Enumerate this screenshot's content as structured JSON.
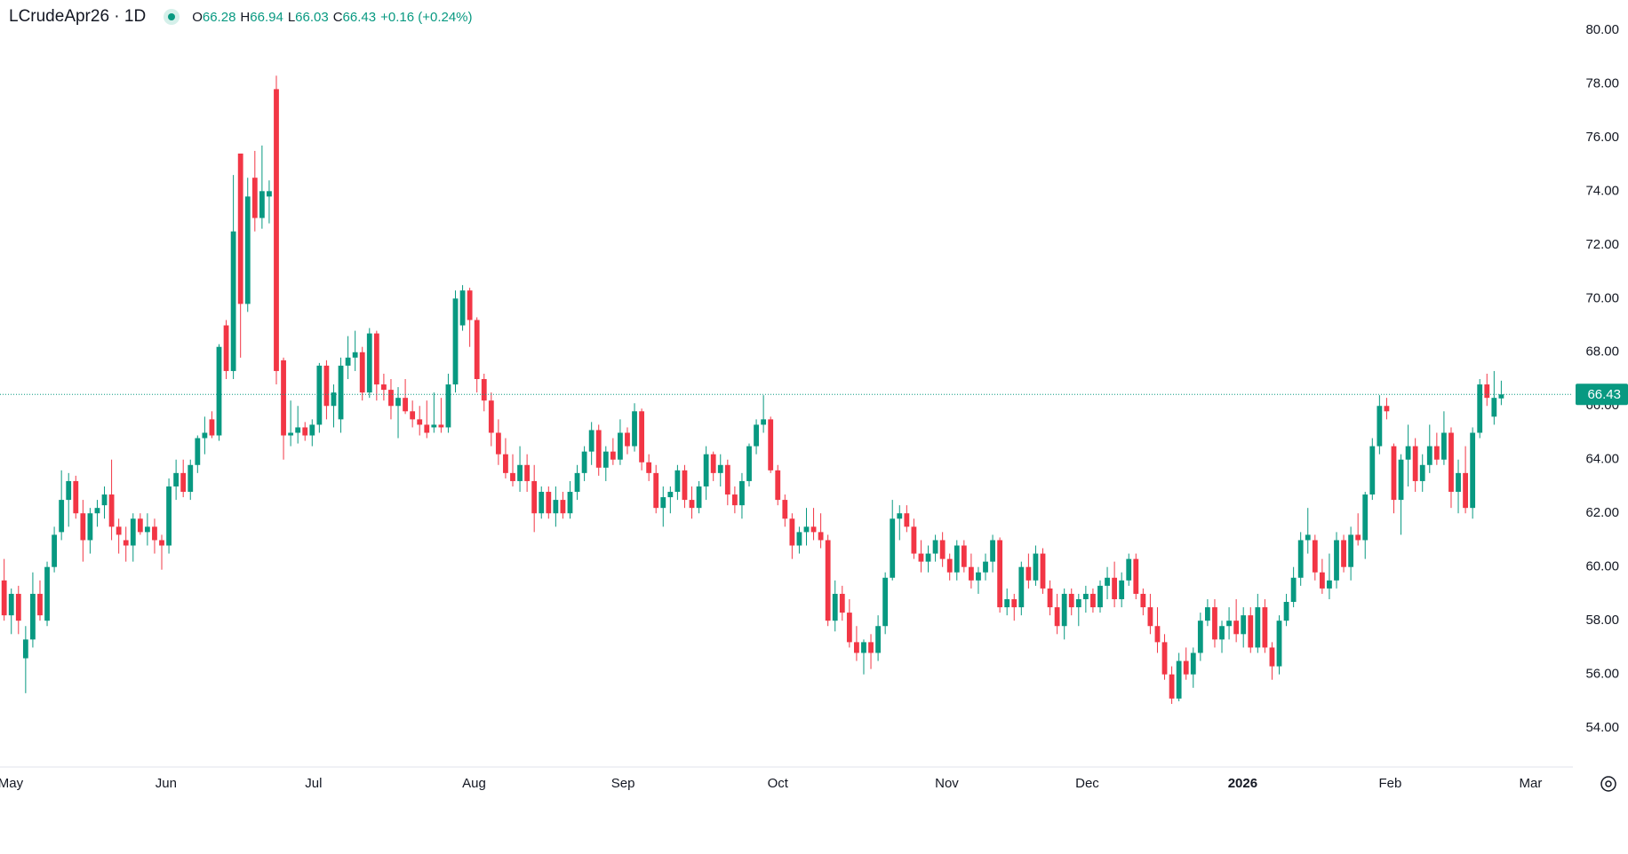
{
  "header": {
    "symbol": "LCrudeApr26 · 1D",
    "legend": [
      {
        "label": "O",
        "value": "66.28"
      },
      {
        "label": "H",
        "value": "66.94"
      },
      {
        "label": "L",
        "value": "66.03"
      },
      {
        "label": "C",
        "value": "66.43"
      }
    ],
    "change": "+0.16 (+0.24%)"
  },
  "chart_data": {
    "type": "candlestick",
    "up_color": "#089981",
    "down_color": "#f23645",
    "ylim": [
      52.55,
      81.12
    ],
    "yticks": [
      {
        "value": 54,
        "label": "54.00"
      },
      {
        "value": 56,
        "label": "56.00"
      },
      {
        "value": 58,
        "label": "58.00"
      },
      {
        "value": 60,
        "label": "60.00"
      },
      {
        "value": 62,
        "label": "62.00"
      },
      {
        "value": 64,
        "label": "64.00"
      },
      {
        "value": 66,
        "label": "66.00"
      },
      {
        "value": 68,
        "label": "68.00"
      },
      {
        "value": 70,
        "label": "70.00"
      },
      {
        "value": 72,
        "label": "72.00"
      },
      {
        "value": 74,
        "label": "74.00"
      },
      {
        "value": 76,
        "label": "76.00"
      },
      {
        "value": 78,
        "label": "78.00"
      },
      {
        "value": 80,
        "label": "80.00"
      }
    ],
    "xlim": [
      -0.58,
      219
    ],
    "xticks": [
      {
        "value": 0.9,
        "label": "May"
      },
      {
        "value": 22.6,
        "label": "Jun"
      },
      {
        "value": 43.2,
        "label": "Jul"
      },
      {
        "value": 65.6,
        "label": "Aug"
      },
      {
        "value": 86.4,
        "label": "Sep"
      },
      {
        "value": 108,
        "label": "Oct"
      },
      {
        "value": 131.6,
        "label": "Nov"
      },
      {
        "value": 151.2,
        "label": "Dec"
      },
      {
        "value": 172.9,
        "label": "2026"
      },
      {
        "value": 193.5,
        "label": "Feb"
      },
      {
        "value": 213.1,
        "label": "Mar"
      }
    ],
    "last_price": 66.43,
    "open": [
      59.5,
      58.2,
      59.0,
      56.6,
      57.3,
      59.0,
      58.0,
      60.0,
      61.3,
      62.5,
      63.2,
      62.0,
      61.0,
      62.0,
      62.3,
      62.7,
      61.5,
      61.0,
      60.8,
      61.8,
      61.3,
      61.5,
      61.0,
      60.8,
      63.0,
      63.5,
      62.8,
      63.8,
      64.8,
      65.5,
      64.9,
      69.0,
      67.3,
      75.4,
      69.8,
      74.5,
      73.0,
      73.8,
      77.8,
      67.7,
      64.9,
      65.0,
      65.2,
      64.9,
      65.3,
      67.5,
      66.0,
      65.5,
      67.5,
      67.8,
      68.0,
      66.5,
      68.7,
      66.8,
      66.6,
      66.0,
      66.3,
      65.8,
      65.5,
      65.3,
      65.2,
      65.3,
      65.2,
      66.8,
      69.0,
      70.3,
      69.2,
      67.0,
      66.2,
      65.0,
      64.2,
      63.5,
      63.2,
      63.8,
      63.2,
      62.0,
      62.8,
      62.0,
      62.5,
      62.0,
      62.8,
      63.5,
      64.3,
      65.1,
      63.7,
      64.3,
      64.0,
      65.0,
      64.5,
      65.8,
      63.9,
      63.5,
      62.2,
      62.6,
      62.8,
      63.6,
      62.5,
      62.2,
      63.0,
      64.2,
      63.5,
      63.8,
      62.7,
      62.3,
      63.2,
      64.5,
      65.3,
      65.5,
      63.6,
      62.5,
      61.8,
      60.8,
      61.3,
      61.5,
      61.3,
      61.0,
      58.0,
      59.0,
      58.3,
      57.2,
      56.8,
      57.2,
      56.8,
      57.8,
      59.6,
      61.8,
      62.0,
      61.5,
      60.5,
      60.2,
      60.5,
      61.0,
      60.3,
      59.8,
      60.8,
      60.0,
      59.5,
      59.8,
      60.2,
      61.0,
      58.5,
      58.8,
      58.5,
      60.0,
      59.5,
      60.5,
      59.2,
      58.5,
      57.8,
      59.0,
      58.5,
      58.8,
      59.0,
      58.5,
      59.3,
      59.6,
      58.8,
      59.5,
      60.3,
      59.0,
      58.5,
      57.8,
      57.2,
      56.0,
      55.1,
      56.5,
      56.0,
      56.8,
      58.0,
      58.5,
      57.3,
      57.8,
      58.0,
      57.5,
      58.2,
      57.0,
      58.5,
      57.0,
      56.3,
      58.0,
      58.7,
      59.6,
      61.0,
      61.0,
      59.8,
      59.2,
      59.5,
      61.0,
      60.0,
      61.2,
      61.0,
      62.7,
      64.5,
      66.0,
      64.5,
      62.5,
      64.0,
      64.5,
      63.2,
      63.8,
      64.5,
      64.0,
      65.0,
      62.8,
      63.5,
      62.2,
      65.0,
      66.8,
      65.6,
      66.28
    ],
    "high": [
      60.3,
      59.2,
      59.3,
      57.8,
      59.8,
      59.5,
      60.2,
      61.5,
      63.6,
      63.5,
      63.4,
      62.5,
      62.2,
      62.5,
      63.0,
      64.0,
      61.8,
      61.5,
      62.0,
      62.0,
      62.0,
      61.8,
      61.2,
      63.3,
      64.0,
      64.0,
      64.0,
      64.9,
      65.6,
      65.8,
      68.3,
      69.2,
      74.6,
      75.4,
      74.5,
      75.5,
      75.7,
      74.4,
      78.3,
      67.8,
      66.2,
      66.0,
      65.4,
      65.5,
      67.6,
      67.7,
      66.8,
      67.8,
      68.6,
      68.8,
      68.2,
      68.9,
      68.8,
      67.2,
      67.0,
      66.7,
      67.0,
      66.2,
      66.0,
      66.2,
      66.5,
      66.3,
      67.2,
      70.3,
      70.5,
      70.4,
      69.3,
      67.2,
      66.5,
      65.5,
      64.8,
      64.2,
      64.5,
      64.2,
      63.8,
      63.0,
      63.0,
      63.0,
      62.8,
      63.2,
      63.8,
      64.5,
      65.4,
      65.3,
      64.5,
      64.8,
      65.5,
      65.2,
      66.1,
      65.9,
      64.2,
      63.8,
      63.0,
      63.0,
      63.8,
      63.8,
      63.0,
      63.2,
      64.5,
      64.3,
      64.2,
      64.0,
      63.0,
      63.5,
      64.6,
      65.5,
      66.4,
      65.6,
      63.8,
      62.7,
      62.0,
      61.5,
      62.2,
      62.2,
      62.0,
      61.2,
      59.5,
      59.3,
      58.8,
      57.8,
      57.3,
      57.5,
      58.2,
      59.8,
      62.5,
      62.3,
      62.3,
      61.8,
      61.0,
      60.8,
      61.2,
      61.3,
      60.5,
      61.0,
      61.0,
      60.5,
      60.0,
      60.5,
      61.2,
      61.1,
      59.2,
      59.0,
      60.2,
      60.5,
      60.8,
      60.7,
      59.5,
      59.0,
      59.2,
      59.2,
      59.0,
      59.3,
      59.2,
      59.5,
      60.0,
      60.2,
      59.8,
      60.5,
      60.5,
      59.2,
      59.0,
      58.5,
      57.5,
      56.3,
      56.8,
      57.0,
      57.0,
      58.3,
      58.8,
      58.8,
      58.0,
      58.5,
      58.8,
      58.5,
      58.5,
      59.0,
      58.8,
      57.2,
      58.2,
      59.0,
      60.0,
      61.3,
      62.2,
      61.2,
      60.3,
      60.5,
      61.3,
      61.2,
      61.5,
      62.0,
      62.8,
      64.8,
      66.4,
      66.3,
      64.6,
      64.2,
      65.3,
      64.8,
      64.2,
      65.3,
      65.0,
      65.8,
      65.2,
      64.0,
      64.5,
      65.2,
      67.0,
      67.2,
      67.3,
      66.94
    ],
    "low": [
      58.0,
      57.5,
      57.5,
      55.3,
      57.0,
      58.0,
      57.8,
      59.8,
      61.0,
      61.5,
      61.8,
      60.2,
      60.5,
      61.5,
      61.8,
      61.0,
      60.5,
      60.2,
      60.2,
      61.2,
      60.8,
      60.5,
      59.9,
      60.5,
      62.5,
      62.6,
      62.5,
      63.5,
      64.2,
      64.8,
      64.7,
      67.0,
      67.0,
      67.8,
      69.5,
      72.5,
      72.6,
      72.8,
      66.8,
      64.0,
      64.5,
      64.6,
      64.7,
      64.5,
      65.0,
      65.5,
      65.2,
      65.0,
      67.0,
      67.3,
      66.2,
      66.3,
      66.2,
      66.2,
      65.5,
      64.8,
      65.7,
      65.2,
      64.9,
      64.8,
      65.0,
      65.0,
      65.0,
      66.5,
      68.8,
      68.2,
      66.5,
      65.8,
      64.5,
      63.8,
      63.3,
      63.0,
      62.8,
      62.8,
      61.3,
      61.8,
      61.8,
      61.5,
      61.8,
      61.8,
      62.5,
      63.2,
      63.8,
      63.4,
      63.2,
      63.8,
      63.8,
      64.2,
      64.3,
      63.6,
      63.2,
      62.0,
      61.5,
      62.0,
      62.5,
      62.2,
      61.8,
      62.0,
      62.5,
      63.2,
      63.0,
      62.3,
      62.0,
      61.8,
      63.0,
      64.2,
      65.0,
      63.5,
      62.3,
      61.5,
      60.3,
      60.5,
      60.8,
      61.0,
      60.7,
      57.8,
      57.6,
      58.0,
      57.0,
      56.5,
      56.0,
      56.2,
      56.5,
      57.5,
      59.5,
      61.0,
      61.3,
      60.3,
      59.8,
      59.8,
      60.2,
      60.0,
      59.5,
      59.5,
      59.8,
      59.2,
      59.0,
      59.5,
      59.8,
      58.3,
      58.2,
      58.0,
      58.2,
      59.2,
      59.3,
      59.0,
      58.2,
      57.5,
      57.3,
      58.2,
      57.8,
      58.3,
      58.3,
      58.3,
      58.8,
      58.5,
      58.5,
      59.3,
      58.8,
      58.2,
      57.5,
      56.8,
      55.8,
      54.9,
      55.0,
      55.8,
      55.5,
      56.5,
      57.8,
      57.0,
      56.8,
      57.3,
      57.2,
      57.0,
      56.8,
      56.8,
      56.8,
      55.8,
      56.0,
      57.8,
      58.5,
      59.3,
      60.5,
      59.5,
      59.0,
      58.8,
      59.2,
      59.8,
      59.5,
      60.8,
      60.3,
      62.5,
      64.2,
      65.5,
      62.0,
      61.2,
      63.0,
      62.8,
      62.8,
      63.5,
      63.8,
      63.8,
      62.2,
      62.0,
      62.0,
      61.8,
      64.8,
      66.0,
      65.3,
      66.03
    ],
    "close": [
      58.2,
      59.0,
      58.0,
      57.3,
      59.0,
      58.2,
      60.0,
      61.2,
      62.5,
      63.2,
      62.0,
      61.0,
      62.0,
      62.2,
      62.7,
      61.5,
      61.2,
      60.8,
      61.8,
      61.3,
      61.5,
      61.0,
      60.8,
      63.0,
      63.5,
      62.8,
      63.8,
      64.8,
      65.0,
      64.9,
      68.2,
      67.3,
      72.5,
      69.8,
      73.8,
      73.0,
      74.0,
      74.0,
      67.3,
      64.9,
      65.0,
      65.2,
      64.9,
      65.3,
      67.5,
      66.0,
      66.5,
      67.5,
      67.8,
      68.0,
      66.5,
      68.7,
      66.8,
      66.6,
      66.0,
      66.3,
      65.8,
      65.5,
      65.3,
      65.0,
      65.3,
      65.2,
      66.8,
      70.0,
      70.3,
      69.2,
      67.0,
      66.2,
      65.0,
      64.2,
      63.5,
      63.2,
      63.8,
      63.2,
      62.0,
      62.8,
      62.0,
      62.5,
      62.0,
      62.8,
      63.5,
      64.3,
      65.1,
      63.7,
      64.3,
      64.0,
      65.0,
      64.5,
      65.8,
      63.9,
      63.5,
      62.2,
      62.6,
      62.8,
      63.6,
      62.5,
      62.2,
      63.0,
      64.2,
      63.5,
      63.8,
      62.7,
      62.3,
      63.2,
      64.5,
      65.3,
      65.5,
      63.6,
      62.5,
      61.8,
      60.8,
      61.3,
      61.5,
      61.3,
      61.0,
      58.0,
      59.0,
      58.3,
      57.2,
      56.8,
      57.2,
      56.8,
      57.8,
      59.6,
      61.8,
      62.0,
      61.5,
      60.5,
      60.2,
      60.5,
      61.0,
      60.3,
      59.8,
      60.8,
      60.0,
      59.5,
      59.8,
      60.2,
      61.0,
      58.5,
      58.8,
      58.5,
      60.0,
      59.5,
      60.5,
      59.2,
      58.5,
      57.8,
      59.0,
      58.5,
      58.8,
      59.0,
      58.5,
      59.3,
      59.6,
      58.8,
      59.5,
      60.3,
      59.0,
      58.5,
      57.8,
      57.2,
      56.0,
      55.1,
      56.5,
      56.0,
      56.8,
      58.0,
      58.5,
      57.3,
      57.8,
      58.0,
      57.5,
      58.2,
      57.0,
      58.5,
      57.0,
      56.3,
      58.0,
      58.7,
      59.6,
      61.0,
      61.2,
      59.8,
      59.2,
      59.5,
      61.0,
      60.0,
      61.2,
      61.0,
      62.7,
      64.5,
      66.0,
      65.8,
      62.5,
      64.0,
      64.5,
      63.2,
      63.8,
      64.5,
      64.0,
      65.0,
      62.8,
      63.5,
      62.2,
      65.0,
      66.8,
      66.3,
      66.3,
      66.43
    ]
  }
}
